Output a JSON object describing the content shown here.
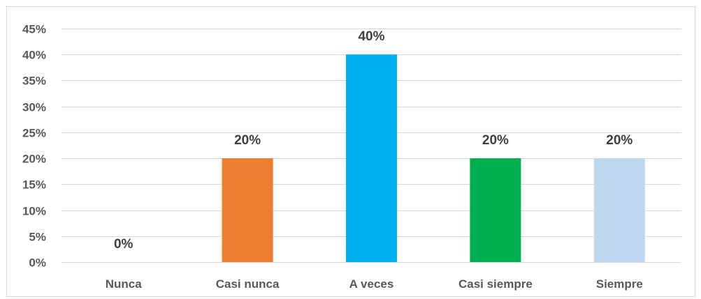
{
  "chart_data": {
    "type": "bar",
    "title": "",
    "xlabel": "",
    "ylabel": "",
    "categories": [
      "Nunca",
      "Casi nunca",
      "A veces",
      "Casi siempre",
      "Siempre"
    ],
    "values": [
      0,
      20,
      40,
      20,
      20
    ],
    "value_labels": [
      "0%",
      "20%",
      "40%",
      "20%",
      "20%"
    ],
    "colors": [
      "#ED7D31",
      "#ED7D31",
      "#00B0F0",
      "#00B050",
      "#BDD7EE"
    ],
    "ylim": [
      0,
      45
    ],
    "yticks": [
      0,
      5,
      10,
      15,
      20,
      25,
      30,
      35,
      40,
      45
    ],
    "ytick_labels": [
      "0%",
      "5%",
      "10%",
      "15%",
      "20%",
      "25%",
      "30%",
      "35%",
      "40%",
      "45%"
    ],
    "grid": true,
    "legend": "none"
  }
}
